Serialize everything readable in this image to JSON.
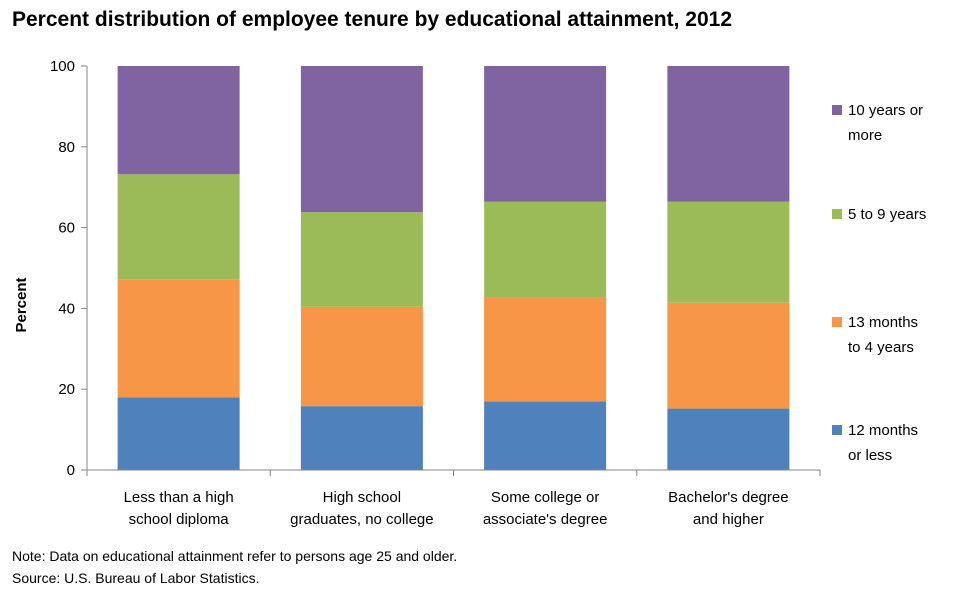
{
  "chart_data": {
    "type": "bar",
    "stacked": true,
    "title": "Percent distribution of employee tenure by educational attainment, 2012",
    "ylabel": "Percent",
    "xlabel": "",
    "ylim": [
      0,
      100
    ],
    "yticks": [
      "0",
      "20",
      "40",
      "60",
      "80",
      "100"
    ],
    "grid": false,
    "legend_position": "right",
    "categories": [
      [
        "Less than  a high",
        "school diploma"
      ],
      [
        "High school",
        "graduates, no college"
      ],
      [
        "Some college or",
        "associate's degree"
      ],
      [
        "Bachelor's degree",
        "and higher"
      ]
    ],
    "series": [
      {
        "name": "12 months or less",
        "legend_lines": [
          "12 months",
          "or less"
        ],
        "color": "#4f81bd",
        "values": [
          18.0,
          15.8,
          17.0,
          15.2
        ]
      },
      {
        "name": "13 months to 4 years",
        "legend_lines": [
          "13 months",
          "to 4 years"
        ],
        "color": "#f79646",
        "values": [
          29.2,
          24.6,
          25.6,
          26.2
        ]
      },
      {
        "name": "5 to 9 years",
        "legend_lines": [
          "5 to 9 years"
        ],
        "color": "#9bbb59",
        "values": [
          26.0,
          23.4,
          23.8,
          25.0
        ]
      },
      {
        "name": "10 years or more",
        "legend_lines": [
          "10 years or",
          "more"
        ],
        "color": "#8064a2",
        "values": [
          26.8,
          36.2,
          33.6,
          33.6
        ]
      }
    ]
  },
  "footer": {
    "note": "Note: Data on educational attainment refer to persons age 25 and older.",
    "source": "Source: U.S. Bureau of Labor Statistics."
  }
}
